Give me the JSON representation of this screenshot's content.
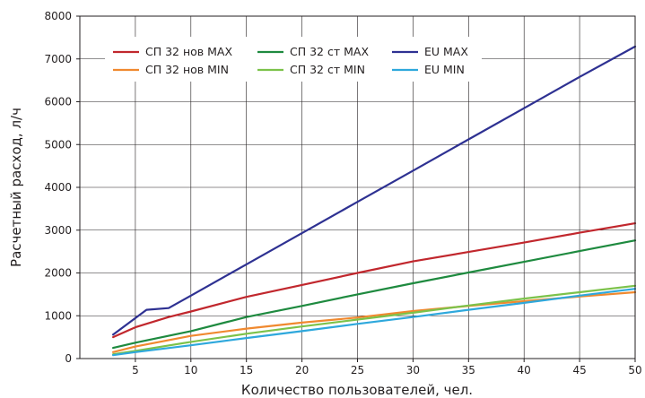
{
  "chart_data": {
    "type": "line",
    "title": "",
    "xlabel": "Количество пользователей, чел.",
    "ylabel": "Расчетный расход, л/ч",
    "xlim": [
      0,
      50
    ],
    "ylim": [
      0,
      8000
    ],
    "x_ticks": [
      5,
      10,
      15,
      20,
      25,
      30,
      35,
      40,
      45,
      50
    ],
    "y_ticks": [
      0,
      1000,
      2000,
      3000,
      4000,
      5000,
      6000,
      7000,
      8000
    ],
    "grid": true,
    "legend_position": "top-left",
    "series": [
      {
        "name": "СП 32 нов MAX",
        "color": "#c1272d",
        "points": [
          [
            3,
            500
          ],
          [
            5,
            730
          ],
          [
            8,
            970
          ],
          [
            10,
            1100
          ],
          [
            15,
            1440
          ],
          [
            20,
            1720
          ],
          [
            25,
            2000
          ],
          [
            30,
            2270
          ],
          [
            35,
            2490
          ],
          [
            40,
            2710
          ],
          [
            45,
            2940
          ],
          [
            50,
            3160
          ]
        ]
      },
      {
        "name": "СП 32 нов MIN",
        "color": "#f0892f",
        "points": [
          [
            3,
            150
          ],
          [
            5,
            280
          ],
          [
            10,
            530
          ],
          [
            15,
            700
          ],
          [
            20,
            840
          ],
          [
            25,
            960
          ],
          [
            30,
            1110
          ],
          [
            35,
            1230
          ],
          [
            40,
            1340
          ],
          [
            45,
            1450
          ],
          [
            50,
            1550
          ]
        ]
      },
      {
        "name": "СП 32 ст MAX",
        "color": "#1e8a3f",
        "points": [
          [
            3,
            250
          ],
          [
            5,
            370
          ],
          [
            10,
            640
          ],
          [
            15,
            970
          ],
          [
            20,
            1230
          ],
          [
            25,
            1500
          ],
          [
            30,
            1760
          ],
          [
            35,
            2010
          ],
          [
            40,
            2260
          ],
          [
            45,
            2510
          ],
          [
            50,
            2760
          ]
        ]
      },
      {
        "name": "СП 32 ст MIN",
        "color": "#7cc24a",
        "points": [
          [
            3,
            100
          ],
          [
            5,
            180
          ],
          [
            10,
            390
          ],
          [
            15,
            580
          ],
          [
            20,
            750
          ],
          [
            25,
            910
          ],
          [
            30,
            1070
          ],
          [
            35,
            1240
          ],
          [
            40,
            1400
          ],
          [
            45,
            1550
          ],
          [
            50,
            1700
          ]
        ]
      },
      {
        "name": "EU MAX",
        "color": "#2e3192",
        "points": [
          [
            3,
            560
          ],
          [
            6,
            1140
          ],
          [
            8,
            1180
          ],
          [
            10,
            1470
          ],
          [
            15,
            2200
          ],
          [
            20,
            2930
          ],
          [
            25,
            3660
          ],
          [
            30,
            4390
          ],
          [
            35,
            5120
          ],
          [
            40,
            5850
          ],
          [
            45,
            6580
          ],
          [
            50,
            7290
          ]
        ]
      },
      {
        "name": "EU MIN",
        "color": "#2ea8dc",
        "points": [
          [
            3,
            80
          ],
          [
            5,
            150
          ],
          [
            10,
            310
          ],
          [
            15,
            480
          ],
          [
            20,
            640
          ],
          [
            25,
            810
          ],
          [
            30,
            970
          ],
          [
            35,
            1140
          ],
          [
            40,
            1300
          ],
          [
            45,
            1470
          ],
          [
            50,
            1630
          ]
        ]
      }
    ]
  }
}
